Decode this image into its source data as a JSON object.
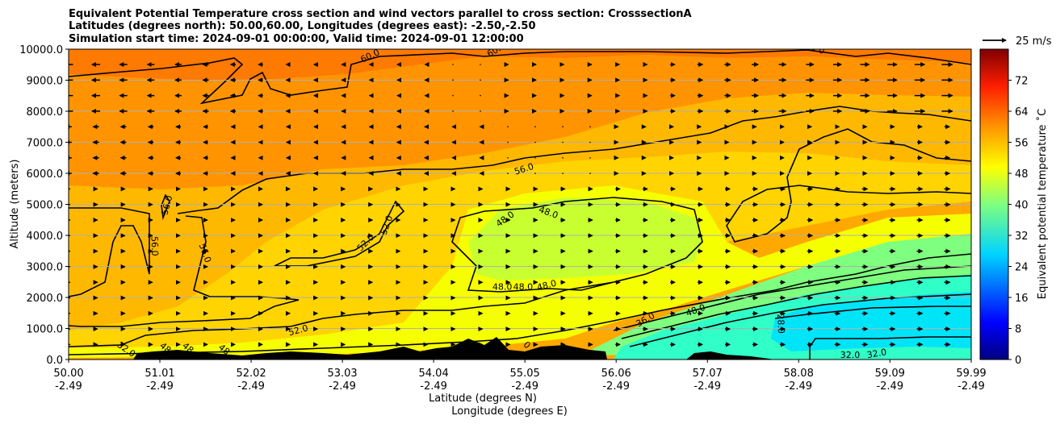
{
  "chart_data": {
    "type": "heatmap",
    "subtype": "filled contour cross section with wind vectors",
    "title_lines": [
      "Equivalent Potential Temperature cross section and wind vectors parallel to cross section: CrosssectionA",
      "Latitudes (degrees north): 50.00,60.00, Longitudes (degrees east): -2.50,-2.50",
      "Simulation start time: 2024-09-01 00:00:00, Valid time: 2024-09-01 12:00:00"
    ],
    "ylabel": "Altitude (meters)",
    "xlabel_lines": [
      "Latitude (degrees N)",
      "Longitude (degrees E)"
    ],
    "x_ticks": [
      {
        "lat": "50.00",
        "lon": "-2.49",
        "value": 50.0
      },
      {
        "lat": "51.01",
        "lon": "-2.49",
        "value": 51.01
      },
      {
        "lat": "52.02",
        "lon": "-2.49",
        "value": 52.02
      },
      {
        "lat": "53.03",
        "lon": "-2.49",
        "value": 53.03
      },
      {
        "lat": "54.04",
        "lon": "-2.49",
        "value": 54.04
      },
      {
        "lat": "55.05",
        "lon": "-2.49",
        "value": 55.05
      },
      {
        "lat": "56.06",
        "lon": "-2.49",
        "value": 56.06
      },
      {
        "lat": "57.07",
        "lon": "-2.49",
        "value": 57.07
      },
      {
        "lat": "58.08",
        "lon": "-2.49",
        "value": 58.08
      },
      {
        "lat": "59.09",
        "lon": "-2.49",
        "value": 59.09
      },
      {
        "lat": "59.99",
        "lon": "-2.49",
        "value": 59.99
      }
    ],
    "xlim": [
      50.0,
      59.99
    ],
    "y_ticks": [
      "0.0",
      "1000.0",
      "2000.0",
      "3000.0",
      "4000.0",
      "5000.0",
      "6000.0",
      "7000.0",
      "8000.0",
      "9000.0",
      "10000.0"
    ],
    "ylim": [
      0,
      10000
    ],
    "grid": "horizontal",
    "colorbar": {
      "label": "Equivalent potential temperature ˚C",
      "ticks": [
        "0",
        "8",
        "16",
        "24",
        "32",
        "40",
        "48",
        "56",
        "64",
        "72"
      ],
      "range": [
        0,
        80
      ],
      "colormap": "jet"
    },
    "quiver_key": "25 m/s",
    "contour_labels": [
      {
        "text": "60.0",
        "lat": 53.35,
        "alt": 9700,
        "rotate": -25
      },
      {
        "text": "60.0",
        "lat": 54.75,
        "alt": 9900,
        "rotate": -30
      },
      {
        "text": "60.0",
        "lat": 58.25,
        "alt": 9950,
        "rotate": 20
      },
      {
        "text": "56.0",
        "lat": 55.05,
        "alt": 6050,
        "rotate": -18
      },
      {
        "text": "56.0",
        "lat": 51.12,
        "alt": 4950,
        "rotate": -75
      },
      {
        "text": "56.0",
        "lat": 50.92,
        "alt": 3650,
        "rotate": 88
      },
      {
        "text": "56.0",
        "lat": 51.48,
        "alt": 3400,
        "rotate": 70
      },
      {
        "text": "52.0",
        "lat": 53.31,
        "alt": 3700,
        "rotate": -45
      },
      {
        "text": "52.0",
        "lat": 53.55,
        "alt": 4300,
        "rotate": -70
      },
      {
        "text": "52.0",
        "lat": 52.55,
        "alt": 850,
        "rotate": -15
      },
      {
        "text": "48.0",
        "lat": 54.85,
        "alt": 4450,
        "rotate": -35
      },
      {
        "text": "48.0",
        "lat": 55.3,
        "alt": 4650,
        "rotate": 20
      },
      {
        "text": "48.0",
        "lat": 54.8,
        "alt": 2250,
        "rotate": 0
      },
      {
        "text": "48.0",
        "lat": 55.03,
        "alt": 2250,
        "rotate": 0
      },
      {
        "text": "48.0",
        "lat": 55.3,
        "alt": 2300,
        "rotate": -15
      },
      {
        "text": "48.0",
        "lat": 56.95,
        "alt": 1500,
        "rotate": -20
      },
      {
        "text": "36.0",
        "lat": 56.4,
        "alt": 1200,
        "rotate": -30
      },
      {
        "text": "28.0",
        "lat": 57.85,
        "alt": 1150,
        "rotate": 88
      },
      {
        "text": "32.0",
        "lat": 50.62,
        "alt": 250,
        "rotate": 35
      },
      {
        "text": "48",
        "lat": 51.05,
        "alt": 300,
        "rotate": 40
      },
      {
        "text": "48",
        "lat": 51.3,
        "alt": 300,
        "rotate": 40
      },
      {
        "text": "48",
        "lat": 51.7,
        "alt": 250,
        "rotate": 40
      },
      {
        "text": "32.0",
        "lat": 58.65,
        "alt": 50,
        "rotate": 0
      },
      {
        "text": "32.0",
        "lat": 58.95,
        "alt": 100,
        "rotate": -10
      },
      {
        "text": "0",
        "lat": 55.05,
        "alt": 400,
        "rotate": 45
      }
    ]
  }
}
